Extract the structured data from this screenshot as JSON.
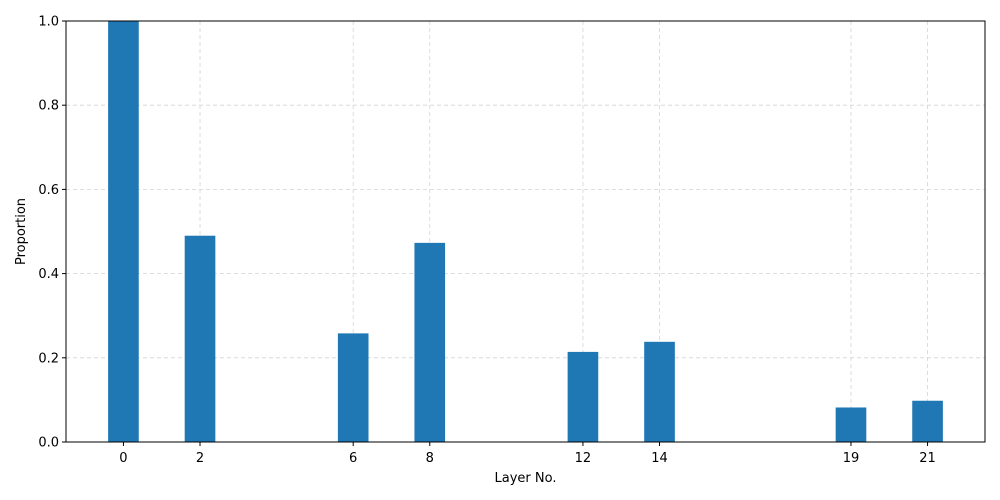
{
  "chart_data": {
    "type": "bar",
    "title": "",
    "xlabel": "Layer No.",
    "ylabel": "Proportion",
    "x": [
      0,
      2,
      6,
      8,
      12,
      14,
      19,
      21
    ],
    "values": [
      1.0,
      0.49,
      0.258,
      0.473,
      0.214,
      0.238,
      0.082,
      0.098
    ],
    "xticks": [
      "0",
      "2",
      "6",
      "8",
      "12",
      "14",
      "19",
      "21"
    ],
    "yticks": [
      "0.0",
      "0.2",
      "0.4",
      "0.6",
      "0.8",
      "1.0"
    ],
    "xlim": [
      -1.5,
      22.5
    ],
    "ylim": [
      0,
      1.0
    ],
    "grid": true,
    "bar_color": "#1f77b4"
  }
}
